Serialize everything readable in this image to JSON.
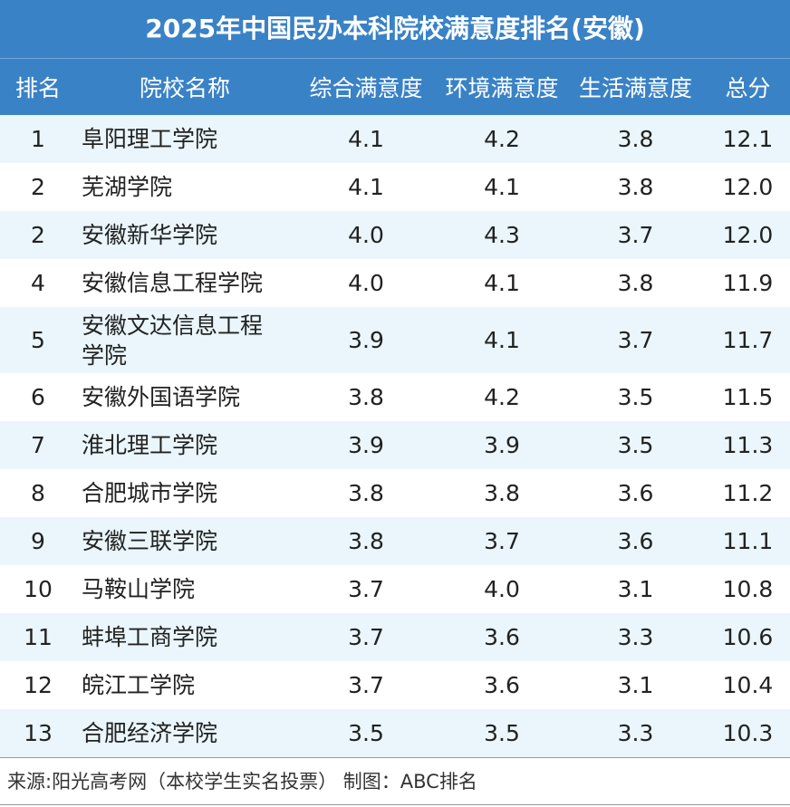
{
  "title": "2025年中国民办本科院校满意度排名(安徽)",
  "headers": {
    "rank": "排名",
    "name": "院校名称",
    "overall": "综合满意度",
    "environment": "环境满意度",
    "life": "生活满意度",
    "total": "总分"
  },
  "rows": [
    {
      "rank": "1",
      "name": "阜阳理工学院",
      "overall": "4.1",
      "environment": "4.2",
      "life": "3.8",
      "total": "12.1"
    },
    {
      "rank": "2",
      "name": "芜湖学院",
      "overall": "4.1",
      "environment": "4.1",
      "life": "3.8",
      "total": "12.0"
    },
    {
      "rank": "2",
      "name": "安徽新华学院",
      "overall": "4.0",
      "environment": "4.3",
      "life": "3.7",
      "total": "12.0"
    },
    {
      "rank": "4",
      "name": "安徽信息工程学院",
      "overall": "4.0",
      "environment": "4.1",
      "life": "3.8",
      "total": "11.9"
    },
    {
      "rank": "5",
      "name": "安徽文达信息工程学院",
      "overall": "3.9",
      "environment": "4.1",
      "life": "3.7",
      "total": "11.7"
    },
    {
      "rank": "6",
      "name": "安徽外国语学院",
      "overall": "3.8",
      "environment": "4.2",
      "life": "3.5",
      "total": "11.5"
    },
    {
      "rank": "7",
      "name": "淮北理工学院",
      "overall": "3.9",
      "environment": "3.9",
      "life": "3.5",
      "total": "11.3"
    },
    {
      "rank": "8",
      "name": "合肥城市学院",
      "overall": "3.8",
      "environment": "3.8",
      "life": "3.6",
      "total": "11.2"
    },
    {
      "rank": "9",
      "name": "安徽三联学院",
      "overall": "3.8",
      "environment": "3.7",
      "life": "3.6",
      "total": "11.1"
    },
    {
      "rank": "10",
      "name": "马鞍山学院",
      "overall": "3.7",
      "environment": "4.0",
      "life": "3.1",
      "total": "10.8"
    },
    {
      "rank": "11",
      "name": "蚌埠工商学院",
      "overall": "3.7",
      "environment": "3.6",
      "life": "3.3",
      "total": "10.6"
    },
    {
      "rank": "12",
      "name": "皖江工学院",
      "overall": "3.7",
      "environment": "3.6",
      "life": "3.1",
      "total": "10.4"
    },
    {
      "rank": "13",
      "name": "合肥经济学院",
      "overall": "3.5",
      "environment": "3.5",
      "life": "3.3",
      "total": "10.3"
    }
  ],
  "footer": "来源:阳光高考网（本校学生实名投票） 制图：ABC排名",
  "colors": {
    "header_bg": "#3a82c6",
    "alt_row_bg": "#eaf6fb"
  }
}
